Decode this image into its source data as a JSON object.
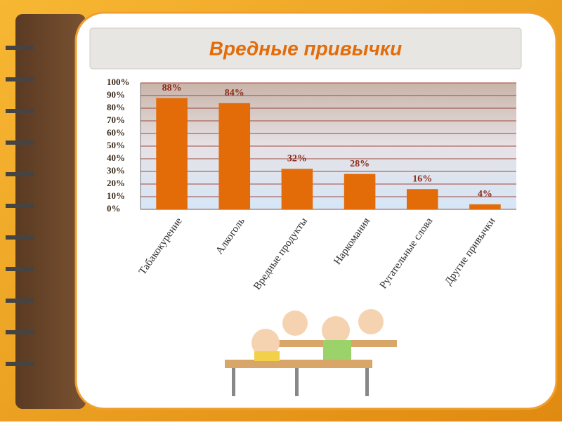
{
  "chart_data": {
    "type": "bar",
    "title": "Вредные привычки",
    "categories": [
      "Табакокурение",
      "Алкоголь",
      "Вредные продукты",
      "Наркомания",
      "Ругательные слова",
      "Другие привычки"
    ],
    "values": [
      88,
      84,
      32,
      28,
      16,
      4
    ],
    "value_labels": [
      "88%",
      "84%",
      "32%",
      "28%",
      "16%",
      "4%"
    ],
    "color": "#e36c09",
    "ylim": [
      0,
      100
    ],
    "yticks": [
      {
        "value": 0,
        "label": "0%"
      },
      {
        "value": 10,
        "label": "10%"
      },
      {
        "value": 20,
        "label": "20%"
      },
      {
        "value": 30,
        "label": "30%"
      },
      {
        "value": 40,
        "label": "40%"
      },
      {
        "value": 50,
        "label": "50%"
      },
      {
        "value": 60,
        "label": "60%"
      },
      {
        "value": 70,
        "label": "70%"
      },
      {
        "value": 80,
        "label": "80%"
      },
      {
        "value": 90,
        "label": "90%"
      },
      {
        "value": 100,
        "label": "100%"
      }
    ],
    "grid": true
  }
}
